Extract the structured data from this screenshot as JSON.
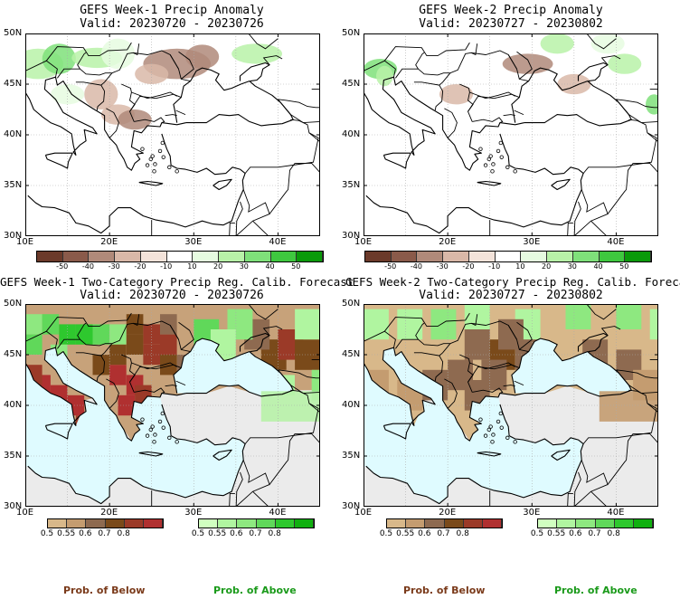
{
  "panels": [
    {
      "title": "GEFS Week-1 Precip Anomaly",
      "valid": "Valid: 20230720 - 20230726"
    },
    {
      "title": "GEFS Week-2 Precip Anomaly",
      "valid": "Valid: 20230727 - 20230802"
    },
    {
      "title": "GEFS Week-1 Two-Category Precip Reg. Calib. Forecast",
      "valid": "Valid: 20230720 - 20230726"
    },
    {
      "title": "GEFS Week-2 Two-Category Precip Reg. Calib. Forecast",
      "valid": "Valid: 20230727 - 20230802"
    }
  ],
  "axes": {
    "lat_labels": [
      "50N",
      "45N",
      "40N",
      "35N",
      "30N"
    ],
    "lon_labels": [
      "10E",
      "20E",
      "30E",
      "40E"
    ]
  },
  "anomaly_colorbar": {
    "ticks": [
      "-50",
      "-40",
      "-30",
      "-20",
      "-10",
      "10",
      "20",
      "30",
      "40",
      "50"
    ],
    "colors": [
      "#6b3a2a",
      "#8a5a4a",
      "#b08a7a",
      "#d9b8a8",
      "#f3e3da",
      "#ffffff",
      "#e6fbe0",
      "#b8f2a8",
      "#7fe07a",
      "#3fc83f",
      "#0a9a0a"
    ]
  },
  "prob_colorbars": {
    "below": {
      "ticks": [
        "0.5",
        "0.55",
        "0.6",
        "0.7",
        "0.8"
      ],
      "colors": [
        "#d8b88a",
        "#c49c70",
        "#8e6a50",
        "#7a4a1a",
        "#9b3a28",
        "#b03030"
      ],
      "label": "Prob. of Below",
      "label_color": "#7a3a1a"
    },
    "above": {
      "ticks": [
        "0.5",
        "0.55",
        "0.6",
        "0.7",
        "0.8"
      ],
      "colors": [
        "#d0ffc0",
        "#b0f5a0",
        "#8ee880",
        "#60d85a",
        "#2ec82e",
        "#10b010"
      ],
      "label": "Prob. of Above",
      "label_color": "#1a9a1a"
    }
  },
  "colors": {
    "sea_calib": "#dffbff",
    "land_nodata": "#ebebeb",
    "coast": "#000000",
    "grid": "#aaaaaa"
  }
}
